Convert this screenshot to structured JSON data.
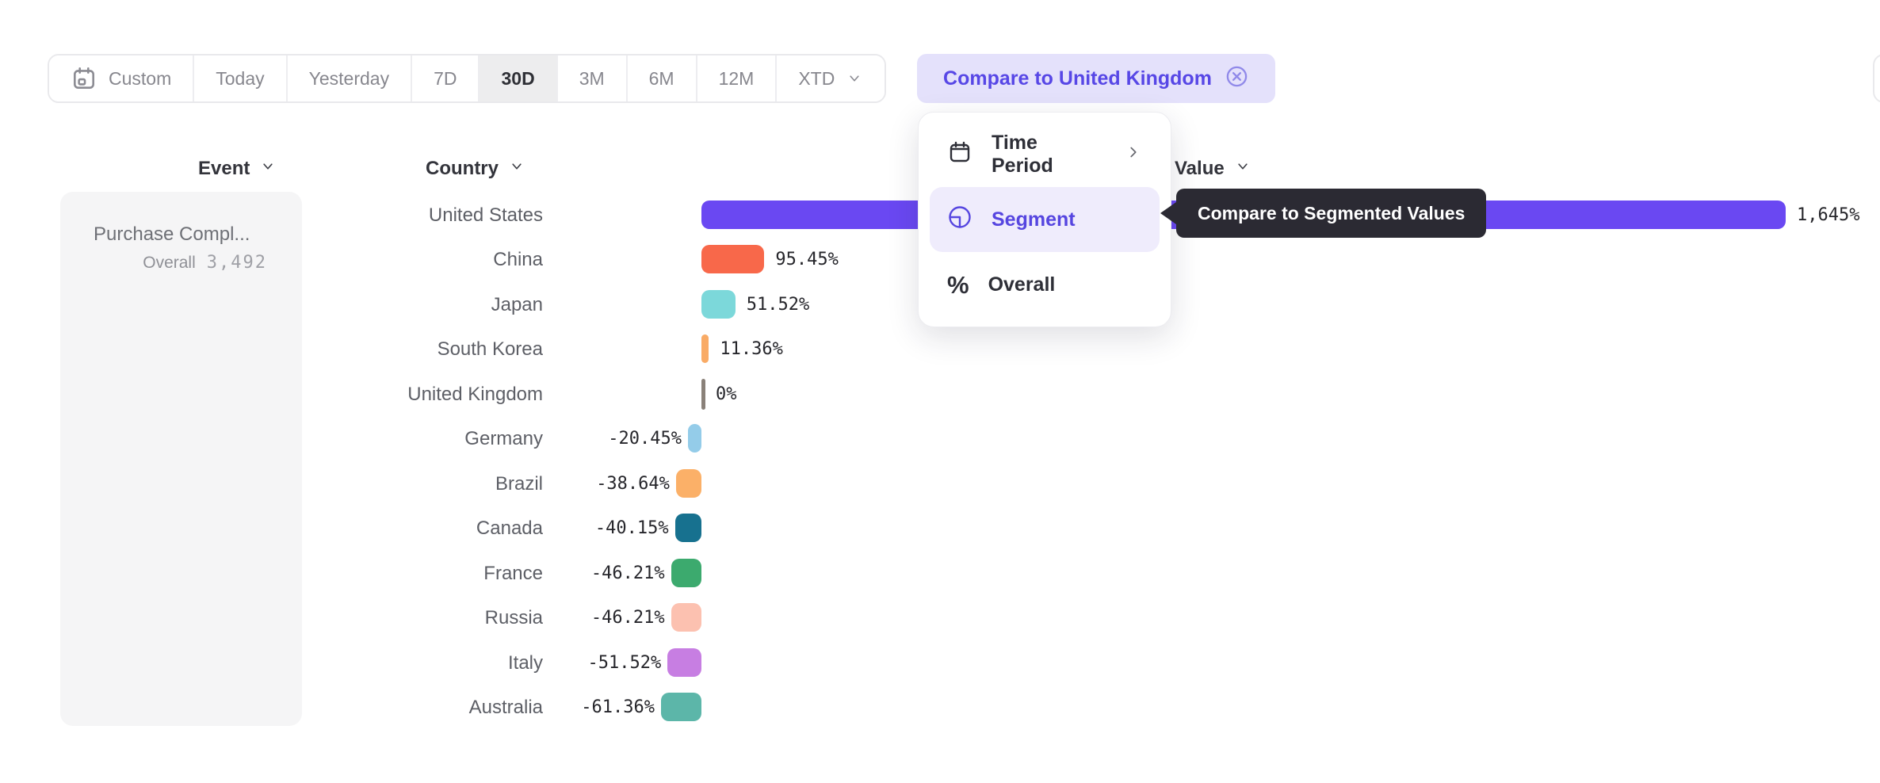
{
  "toolbar": {
    "items": [
      {
        "label": "Custom",
        "icon": "calendar-custom-icon",
        "selected": false,
        "chevron": false
      },
      {
        "label": "Today",
        "selected": false,
        "chevron": false
      },
      {
        "label": "Yesterday",
        "selected": false,
        "chevron": false
      },
      {
        "label": "7D",
        "selected": false,
        "chevron": false
      },
      {
        "label": "30D",
        "selected": true,
        "chevron": false
      },
      {
        "label": "3M",
        "selected": false,
        "chevron": false
      },
      {
        "label": "6M",
        "selected": false,
        "chevron": false
      },
      {
        "label": "12M",
        "selected": false,
        "chevron": false
      },
      {
        "label": "XTD",
        "selected": false,
        "chevron": true
      }
    ]
  },
  "compare_chip": {
    "label": "Compare to United Kingdom",
    "icon": "close-circle-icon"
  },
  "columns": {
    "event": "Event",
    "country": "Country",
    "value": "Value"
  },
  "event_panel": {
    "title": "Purchase Compl...",
    "overall_label": "Overall",
    "overall_value": "3,492"
  },
  "menu": {
    "items": [
      {
        "label": "Time Period",
        "icon": "calendar-icon",
        "submenu": true,
        "selected": false
      },
      {
        "label": "Segment",
        "icon": "segment-icon",
        "submenu": false,
        "selected": true
      },
      {
        "label": "Overall",
        "icon": "percent-icon",
        "submenu": false,
        "selected": false
      }
    ]
  },
  "tooltip": {
    "text": "Compare to Segmented Values"
  },
  "chart_data": {
    "type": "bar",
    "orientation": "horizontal",
    "unit": "%",
    "baseline": 0,
    "categories": [
      "United States",
      "China",
      "Japan",
      "South Korea",
      "United Kingdom",
      "Germany",
      "Brazil",
      "Canada",
      "France",
      "Russia",
      "Italy",
      "Australia"
    ],
    "values": [
      1645,
      95.45,
      51.52,
      11.36,
      0,
      -20.45,
      -38.64,
      -40.15,
      -46.21,
      -46.21,
      -51.52,
      -61.36
    ],
    "labels": [
      "1,645%",
      "95.45%",
      "51.52%",
      "11.36%",
      "0%",
      "-20.45%",
      "-38.64%",
      "-40.15%",
      "-46.21%",
      "-46.21%",
      "-51.52%",
      "-61.36%"
    ],
    "colors": [
      "#6a48f2",
      "#f8684a",
      "#7cd8da",
      "#f9ab66",
      "#8a8179",
      "#94cce9",
      "#fbb068",
      "#17718f",
      "#3caa6e",
      "#fcc1b0",
      "#c77ee2",
      "#5cb6a9"
    ]
  },
  "colors": {
    "accent": "#5747e6",
    "chip_bg": "#e4e1fb",
    "menu_highlight": "#efecfc",
    "tooltip_bg": "#2b2a33",
    "panel_bg": "#f5f5f6",
    "selected_range_bg": "#ededee"
  }
}
